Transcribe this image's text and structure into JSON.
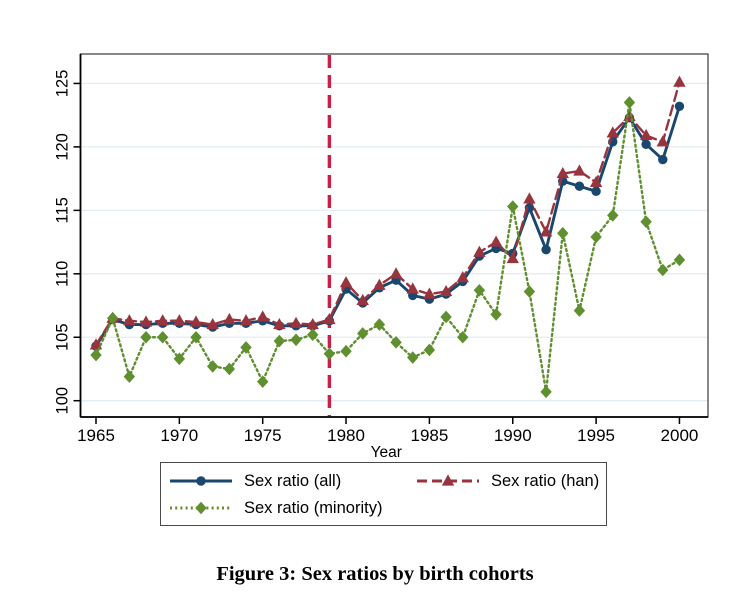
{
  "figure": {
    "title": "Figure 3: Sex ratios by birth cohorts"
  },
  "chart_data": {
    "type": "line",
    "title": "",
    "xlabel": "Year",
    "ylabel": "",
    "xlim": [
      1965,
      2000
    ],
    "ylim": [
      100,
      125
    ],
    "xticks": [
      1965,
      1970,
      1975,
      1980,
      1985,
      1990,
      1995,
      2000
    ],
    "yticks": [
      100,
      105,
      110,
      115,
      120,
      125
    ],
    "grid": "horizontal",
    "gridline_color": "#e4edf3",
    "legend_position": "bottom-box",
    "reference_line": {
      "x": 1979,
      "color": "#cc1f48",
      "style": "dashed",
      "label": ""
    },
    "x": [
      1965,
      1966,
      1967,
      1968,
      1969,
      1970,
      1971,
      1972,
      1973,
      1974,
      1975,
      1976,
      1977,
      1978,
      1979,
      1980,
      1981,
      1982,
      1983,
      1984,
      1985,
      1986,
      1987,
      1988,
      1989,
      1990,
      1991,
      1992,
      1993,
      1994,
      1995,
      1996,
      1997,
      1998,
      1999,
      2000
    ],
    "series": [
      {
        "name": "Sex ratio (all)",
        "color": "#1a476f",
        "line_style": "solid",
        "marker": "circle",
        "values": [
          104.3,
          106.4,
          106.0,
          106.0,
          106.1,
          106.1,
          106.0,
          105.8,
          106.1,
          106.1,
          106.3,
          105.9,
          105.9,
          105.9,
          106.3,
          108.8,
          107.7,
          108.9,
          109.5,
          108.3,
          108.0,
          108.4,
          109.4,
          111.4,
          112.0,
          111.6,
          115.2,
          111.9,
          117.3,
          116.9,
          116.5,
          120.4,
          122.3,
          120.2,
          119.0,
          123.2
        ]
      },
      {
        "name": "Sex ratio (han)",
        "color": "#98343e",
        "line_style": "dashed",
        "marker": "triangle",
        "values": [
          104.4,
          106.5,
          106.3,
          106.2,
          106.3,
          106.3,
          106.2,
          106.0,
          106.4,
          106.3,
          106.6,
          106.0,
          106.1,
          106.0,
          106.4,
          109.3,
          107.9,
          109.1,
          110.0,
          108.8,
          108.4,
          108.6,
          109.7,
          111.7,
          112.5,
          111.2,
          115.9,
          113.3,
          117.9,
          118.1,
          117.2,
          121.1,
          122.4,
          120.9,
          120.4,
          125.1
        ]
      },
      {
        "name": "Sex ratio (minority)",
        "color": "#5f8f2f",
        "line_style": "dotted",
        "marker": "diamond",
        "values": [
          103.6,
          106.5,
          101.9,
          105.0,
          105.0,
          103.3,
          105.0,
          102.7,
          102.5,
          104.2,
          101.5,
          104.7,
          104.8,
          105.2,
          103.7,
          103.9,
          105.3,
          106.0,
          104.6,
          103.4,
          104.0,
          106.6,
          105.0,
          108.7,
          106.8,
          115.3,
          108.6,
          100.7,
          113.2,
          107.1,
          112.9,
          114.6,
          123.5,
          114.1,
          110.3,
          111.1
        ]
      }
    ]
  }
}
